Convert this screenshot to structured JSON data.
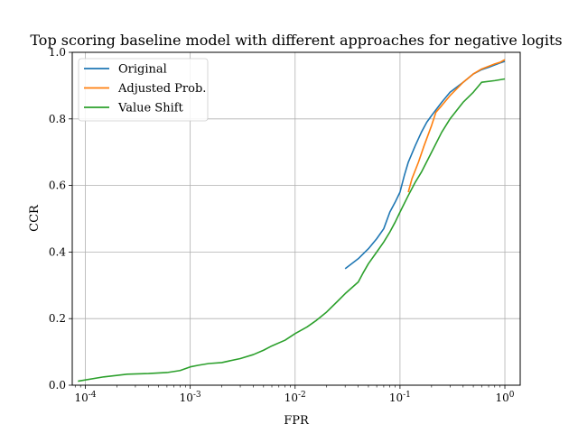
{
  "chart_data": {
    "type": "line",
    "title": "Top scoring baseline model with different approaches for negative logits",
    "xlabel": "FPR",
    "ylabel": "CCR",
    "xscale": "log",
    "xlim": [
      7.5e-05,
      1.4
    ],
    "ylim": [
      0.0,
      1.0
    ],
    "grid": true,
    "legend_position": "top-left",
    "x_ticks": [
      {
        "value": 0.0001,
        "base": "10",
        "exp": "-4"
      },
      {
        "value": 0.001,
        "base": "10",
        "exp": "-3"
      },
      {
        "value": 0.01,
        "base": "10",
        "exp": "-2"
      },
      {
        "value": 0.1,
        "base": "10",
        "exp": "-1"
      },
      {
        "value": 1.0,
        "base": "10",
        "exp": "0"
      }
    ],
    "y_ticks": [
      "0.0",
      "0.2",
      "0.4",
      "0.6",
      "0.8",
      "1.0"
    ],
    "series": [
      {
        "name": "Original",
        "color": "#1f77b4",
        "points": [
          [
            0.03,
            0.35
          ],
          [
            0.04,
            0.38
          ],
          [
            0.05,
            0.41
          ],
          [
            0.06,
            0.44
          ],
          [
            0.07,
            0.47
          ],
          [
            0.08,
            0.52
          ],
          [
            0.09,
            0.55
          ],
          [
            0.1,
            0.58
          ],
          [
            0.11,
            0.63
          ],
          [
            0.12,
            0.67
          ],
          [
            0.14,
            0.72
          ],
          [
            0.16,
            0.76
          ],
          [
            0.18,
            0.79
          ],
          [
            0.2,
            0.81
          ],
          [
            0.25,
            0.85
          ],
          [
            0.3,
            0.88
          ],
          [
            0.4,
            0.91
          ],
          [
            0.5,
            0.935
          ],
          [
            0.6,
            0.948
          ],
          [
            0.7,
            0.955
          ],
          [
            0.8,
            0.962
          ],
          [
            0.9,
            0.968
          ],
          [
            1.0,
            0.973
          ]
        ]
      },
      {
        "name": "Adjusted Prob.",
        "color": "#ff7f0e",
        "points": [
          [
            0.12,
            0.58
          ],
          [
            0.13,
            0.62
          ],
          [
            0.15,
            0.67
          ],
          [
            0.17,
            0.72
          ],
          [
            0.2,
            0.78
          ],
          [
            0.22,
            0.82
          ],
          [
            0.25,
            0.84
          ],
          [
            0.3,
            0.87
          ],
          [
            0.4,
            0.91
          ],
          [
            0.5,
            0.935
          ],
          [
            0.6,
            0.95
          ],
          [
            0.7,
            0.958
          ],
          [
            0.8,
            0.965
          ],
          [
            0.9,
            0.97
          ],
          [
            1.0,
            0.978
          ]
        ]
      },
      {
        "name": "Value Shift",
        "color": "#2ca02c",
        "points": [
          [
            8.5e-05,
            0.012
          ],
          [
            0.00015,
            0.025
          ],
          [
            0.00025,
            0.033
          ],
          [
            0.0004,
            0.035
          ],
          [
            0.0006,
            0.038
          ],
          [
            0.0008,
            0.044
          ],
          [
            0.001,
            0.055
          ],
          [
            0.0012,
            0.06
          ],
          [
            0.0015,
            0.065
          ],
          [
            0.002,
            0.068
          ],
          [
            0.003,
            0.08
          ],
          [
            0.004,
            0.092
          ],
          [
            0.005,
            0.105
          ],
          [
            0.006,
            0.118
          ],
          [
            0.008,
            0.135
          ],
          [
            0.01,
            0.155
          ],
          [
            0.013,
            0.175
          ],
          [
            0.016,
            0.195
          ],
          [
            0.02,
            0.22
          ],
          [
            0.025,
            0.25
          ],
          [
            0.03,
            0.275
          ],
          [
            0.04,
            0.31
          ],
          [
            0.045,
            0.34
          ],
          [
            0.05,
            0.365
          ],
          [
            0.06,
            0.4
          ],
          [
            0.07,
            0.43
          ],
          [
            0.08,
            0.46
          ],
          [
            0.09,
            0.49
          ],
          [
            0.1,
            0.52
          ],
          [
            0.12,
            0.57
          ],
          [
            0.14,
            0.61
          ],
          [
            0.16,
            0.64
          ],
          [
            0.2,
            0.7
          ],
          [
            0.25,
            0.76
          ],
          [
            0.3,
            0.8
          ],
          [
            0.4,
            0.85
          ],
          [
            0.5,
            0.88
          ],
          [
            0.6,
            0.91
          ],
          [
            0.8,
            0.915
          ],
          [
            1.0,
            0.92
          ]
        ]
      }
    ]
  }
}
